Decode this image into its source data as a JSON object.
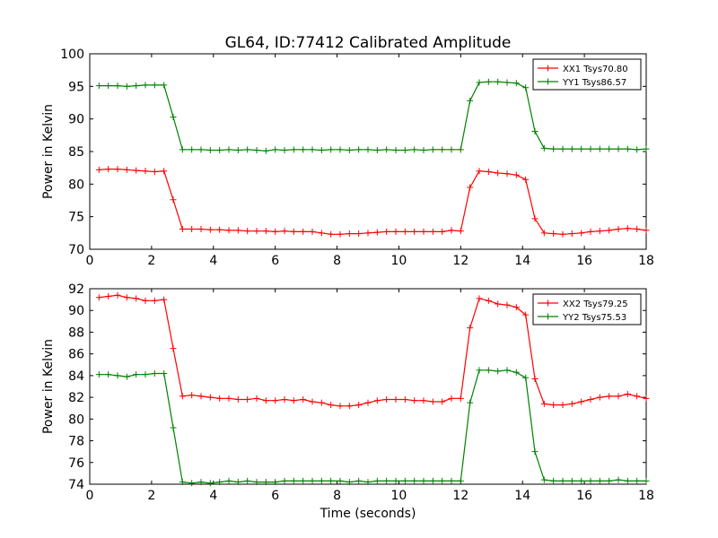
{
  "figure": {
    "title": "GL64, ID:77412 Calibrated Amplitude"
  },
  "chart_data": [
    {
      "type": "line",
      "title": "GL64, ID:77412 Calibrated Amplitude",
      "xlabel": "",
      "ylabel": "Power in Kelvin",
      "xlim": [
        0,
        18
      ],
      "ylim": [
        70,
        100
      ],
      "xticks": [
        "0",
        "2",
        "4",
        "6",
        "8",
        "10",
        "12",
        "14",
        "16",
        "18"
      ],
      "yticks": [
        "70",
        "75",
        "80",
        "85",
        "90",
        "95",
        "100"
      ],
      "grid": false,
      "legend_position": "top-right",
      "x": [
        0.3,
        0.6,
        0.9,
        1.2,
        1.5,
        1.8,
        2.1,
        2.4,
        2.7,
        3.0,
        3.3,
        3.6,
        3.9,
        4.2,
        4.5,
        4.8,
        5.1,
        5.4,
        5.7,
        6.0,
        6.3,
        6.6,
        6.9,
        7.2,
        7.5,
        7.8,
        8.1,
        8.4,
        8.7,
        9.0,
        9.3,
        9.6,
        9.9,
        10.2,
        10.5,
        10.8,
        11.1,
        11.4,
        11.7,
        12.0,
        12.3,
        12.6,
        12.9,
        13.2,
        13.5,
        13.8,
        14.1,
        14.4,
        14.7,
        15.0,
        15.3,
        15.6,
        15.9,
        16.2,
        16.5,
        16.8,
        17.1,
        17.4,
        17.7,
        18.0
      ],
      "series": [
        {
          "name": "XX1 Tsys70.80",
          "color": "#ff0000",
          "values": [
            82.2,
            82.3,
            82.3,
            82.2,
            82.1,
            82.0,
            81.9,
            82.0,
            77.6,
            73.1,
            73.1,
            73.1,
            73.0,
            73.0,
            72.9,
            72.9,
            72.8,
            72.8,
            72.8,
            72.7,
            72.8,
            72.7,
            72.7,
            72.7,
            72.5,
            72.3,
            72.3,
            72.4,
            72.4,
            72.5,
            72.6,
            72.7,
            72.7,
            72.7,
            72.7,
            72.7,
            72.7,
            72.7,
            72.9,
            72.8,
            79.5,
            82.0,
            81.9,
            81.7,
            81.6,
            81.4,
            80.7,
            74.7,
            72.5,
            72.4,
            72.3,
            72.4,
            72.5,
            72.7,
            72.8,
            72.9,
            73.1,
            73.2,
            73.1,
            72.9
          ]
        },
        {
          "name": "YY1 Tsys86.57",
          "color": "#008000",
          "values": [
            95.1,
            95.1,
            95.1,
            95.0,
            95.1,
            95.2,
            95.2,
            95.2,
            90.3,
            85.3,
            85.3,
            85.3,
            85.2,
            85.2,
            85.3,
            85.2,
            85.3,
            85.2,
            85.1,
            85.3,
            85.2,
            85.3,
            85.3,
            85.3,
            85.2,
            85.3,
            85.3,
            85.2,
            85.3,
            85.3,
            85.2,
            85.3,
            85.2,
            85.2,
            85.3,
            85.2,
            85.3,
            85.3,
            85.3,
            85.3,
            92.8,
            95.6,
            95.7,
            95.7,
            95.6,
            95.5,
            94.8,
            88.1,
            85.5,
            85.4,
            85.4,
            85.4,
            85.4,
            85.4,
            85.4,
            85.4,
            85.4,
            85.4,
            85.3,
            85.4
          ]
        }
      ]
    },
    {
      "type": "line",
      "title": "",
      "xlabel": "Time (seconds)",
      "ylabel": "Power in Kelvin",
      "xlim": [
        0,
        18
      ],
      "ylim": [
        74,
        92
      ],
      "xticks": [
        "0",
        "2",
        "4",
        "6",
        "8",
        "10",
        "12",
        "14",
        "16",
        "18"
      ],
      "yticks": [
        "74",
        "76",
        "78",
        "80",
        "82",
        "84",
        "86",
        "88",
        "90",
        "92"
      ],
      "grid": false,
      "legend_position": "top-right",
      "x": [
        0.3,
        0.6,
        0.9,
        1.2,
        1.5,
        1.8,
        2.1,
        2.4,
        2.7,
        3.0,
        3.3,
        3.6,
        3.9,
        4.2,
        4.5,
        4.8,
        5.1,
        5.4,
        5.7,
        6.0,
        6.3,
        6.6,
        6.9,
        7.2,
        7.5,
        7.8,
        8.1,
        8.4,
        8.7,
        9.0,
        9.3,
        9.6,
        9.9,
        10.2,
        10.5,
        10.8,
        11.1,
        11.4,
        11.7,
        12.0,
        12.3,
        12.6,
        12.9,
        13.2,
        13.5,
        13.8,
        14.1,
        14.4,
        14.7,
        15.0,
        15.3,
        15.6,
        15.9,
        16.2,
        16.5,
        16.8,
        17.1,
        17.4,
        17.7,
        18.0
      ],
      "series": [
        {
          "name": "XX2 Tsys79.25",
          "color": "#ff0000",
          "values": [
            91.2,
            91.3,
            91.4,
            91.2,
            91.1,
            90.9,
            90.9,
            91.0,
            86.5,
            82.1,
            82.2,
            82.1,
            82.0,
            81.9,
            81.9,
            81.8,
            81.8,
            81.9,
            81.7,
            81.7,
            81.8,
            81.7,
            81.8,
            81.6,
            81.5,
            81.3,
            81.2,
            81.2,
            81.3,
            81.5,
            81.7,
            81.8,
            81.8,
            81.8,
            81.7,
            81.7,
            81.6,
            81.6,
            81.9,
            81.9,
            88.4,
            91.1,
            90.9,
            90.6,
            90.5,
            90.3,
            89.6,
            83.7,
            81.4,
            81.3,
            81.3,
            81.4,
            81.6,
            81.8,
            82.0,
            82.1,
            82.1,
            82.3,
            82.1,
            81.9
          ]
        },
        {
          "name": "YY2 Tsys75.53",
          "color": "#008000",
          "values": [
            84.1,
            84.1,
            84.0,
            83.9,
            84.1,
            84.1,
            84.2,
            84.2,
            79.2,
            74.2,
            74.1,
            74.2,
            74.1,
            74.2,
            74.3,
            74.2,
            74.3,
            74.2,
            74.2,
            74.2,
            74.3,
            74.3,
            74.3,
            74.3,
            74.3,
            74.3,
            74.3,
            74.2,
            74.3,
            74.2,
            74.3,
            74.3,
            74.3,
            74.3,
            74.3,
            74.3,
            74.3,
            74.3,
            74.3,
            74.3,
            81.5,
            84.5,
            84.5,
            84.4,
            84.5,
            84.3,
            83.8,
            77.0,
            74.4,
            74.3,
            74.3,
            74.3,
            74.3,
            74.3,
            74.3,
            74.3,
            74.4,
            74.3,
            74.3,
            74.3
          ]
        }
      ]
    }
  ]
}
